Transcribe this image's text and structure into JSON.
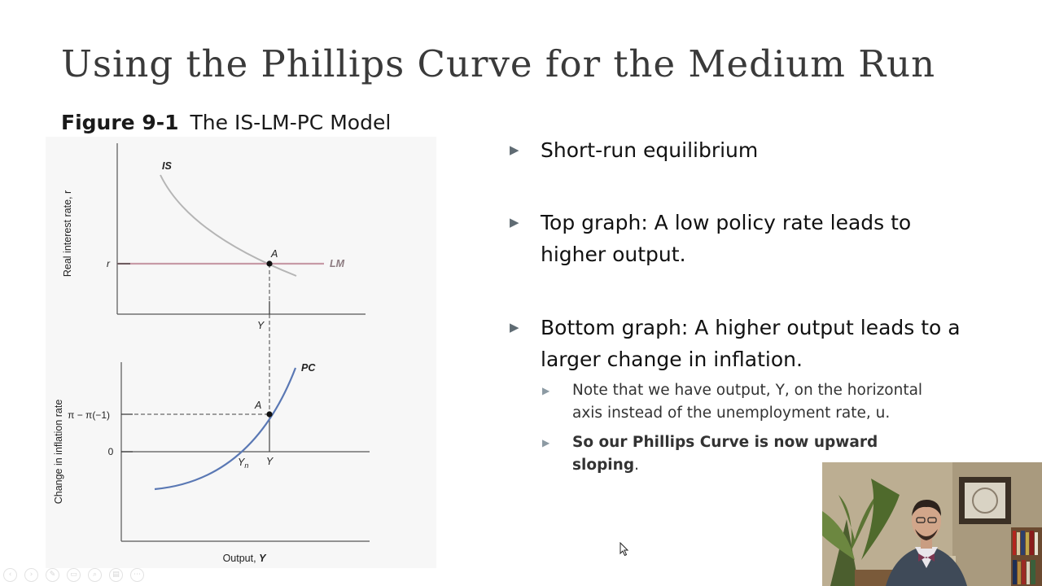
{
  "slide": {
    "title": "Using the Phillips Curve for the Medium Run",
    "figure_number": "Figure 9-1",
    "figure_title": "The IS-LM-PC Model"
  },
  "figure": {
    "top": {
      "y_axis_label": "Real interest rate, r",
      "r_tick": "r",
      "is_label": "IS",
      "lm_label": "LM",
      "point_label": "A",
      "y_tick": "Y"
    },
    "bottom": {
      "y_axis_label": "Change in inflation rate",
      "pi_tick": "π − π(−1)",
      "zero_tick": "0",
      "pc_label": "PC",
      "point_label": "A",
      "yn_main": "Y",
      "yn_sub": "n",
      "y_tick": "Y",
      "x_axis_prefix": "Output, ",
      "x_axis_var": "Y"
    },
    "colors": {
      "is_curve": "#b5b5b5",
      "lm_line": "#c79aa6",
      "pc_curve": "#5a78b4",
      "axis": "#555555"
    }
  },
  "bullets": [
    {
      "text": "Short-run equilibrium"
    },
    {
      "text": "Top graph: A low policy rate leads to higher output."
    },
    {
      "text": "Bottom graph: A higher output leads to a larger change in inflation.",
      "sub": [
        {
          "text": "Note that we have output, Y, on the horizontal axis instead of the unemployment rate, u."
        },
        {
          "text": "So our Phillips Curve is now upward sloping",
          "tail": "."
        }
      ]
    }
  ],
  "player": {
    "controls": [
      {
        "icon": "previous-slide-icon",
        "glyph": "‹"
      },
      {
        "icon": "next-slide-icon",
        "glyph": "›"
      },
      {
        "icon": "pen-icon",
        "glyph": "✎"
      },
      {
        "icon": "slides-icon",
        "glyph": "▭"
      },
      {
        "icon": "zoom-icon",
        "glyph": "⌕"
      },
      {
        "icon": "subtitles-icon",
        "glyph": "▤"
      },
      {
        "icon": "more-icon",
        "glyph": "⋯"
      }
    ]
  }
}
